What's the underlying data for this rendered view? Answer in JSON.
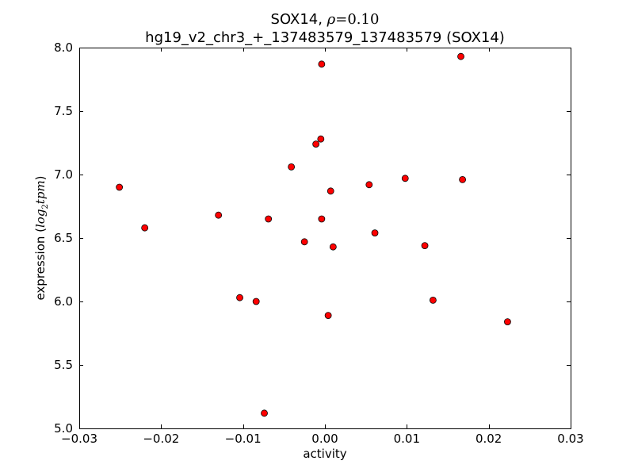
{
  "chart_data": {
    "type": "scatter",
    "title_gene": "SOX14, ",
    "title_rho_symbol": "ρ",
    "title_rho_value": "=0.10",
    "subtitle": "hg19_v2_chr3_+_137483579_137483579 (SOX14)",
    "xlabel": "activity",
    "ylabel_text": "expression (",
    "ylabel_math": "log",
    "ylabel_sub": "2",
    "ylabel_math2": "tpm",
    "ylabel_close": ")",
    "xlim": [
      -0.03,
      0.03
    ],
    "ylim": [
      5.0,
      8.0
    ],
    "xticks": [
      -0.03,
      -0.02,
      -0.01,
      0.0,
      0.01,
      0.02,
      0.03
    ],
    "xtick_labels": [
      "−0.03",
      "−0.02",
      "−0.01",
      "0.00",
      "0.01",
      "0.02",
      "0.03"
    ],
    "yticks": [
      5.0,
      5.5,
      6.0,
      6.5,
      7.0,
      7.5,
      8.0
    ],
    "ytick_labels": [
      "5.0",
      "5.5",
      "6.0",
      "6.5",
      "7.0",
      "7.5",
      "8.0"
    ],
    "grid": false,
    "marker_color": "#ff0000",
    "points": [
      {
        "x": -0.0251,
        "y": 6.9
      },
      {
        "x": -0.022,
        "y": 6.58
      },
      {
        "x": -0.013,
        "y": 6.68
      },
      {
        "x": -0.0104,
        "y": 6.03
      },
      {
        "x": -0.0084,
        "y": 6.0
      },
      {
        "x": -0.0074,
        "y": 5.12
      },
      {
        "x": -0.0069,
        "y": 6.65
      },
      {
        "x": -0.0041,
        "y": 7.06
      },
      {
        "x": -0.0025,
        "y": 6.47
      },
      {
        "x": -0.0011,
        "y": 7.24
      },
      {
        "x": -0.0005,
        "y": 7.28
      },
      {
        "x": -0.0004,
        "y": 7.87
      },
      {
        "x": -0.0004,
        "y": 6.65
      },
      {
        "x": 0.0004,
        "y": 5.89
      },
      {
        "x": 0.0007,
        "y": 6.87
      },
      {
        "x": 0.001,
        "y": 6.43
      },
      {
        "x": 0.0054,
        "y": 6.92
      },
      {
        "x": 0.0061,
        "y": 6.54
      },
      {
        "x": 0.0098,
        "y": 6.97
      },
      {
        "x": 0.0122,
        "y": 6.44
      },
      {
        "x": 0.0132,
        "y": 6.01
      },
      {
        "x": 0.0166,
        "y": 7.93
      },
      {
        "x": 0.0168,
        "y": 6.96
      },
      {
        "x": 0.0223,
        "y": 5.84
      }
    ]
  }
}
